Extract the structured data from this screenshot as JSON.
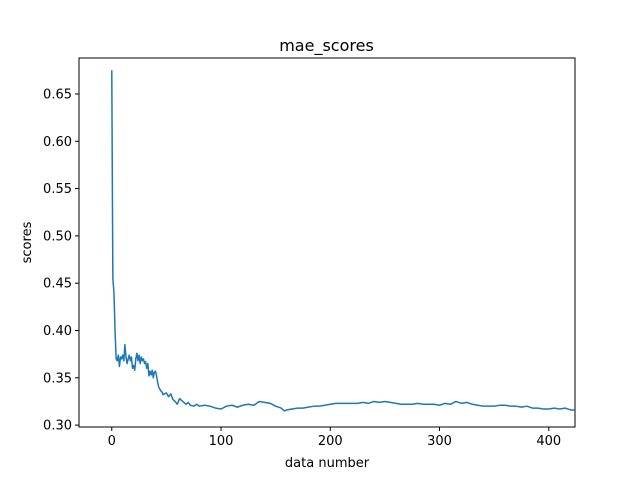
{
  "chart_data": {
    "type": "line",
    "title": "mae_scores",
    "xlabel": "data number",
    "ylabel": "scores",
    "xlim": [
      -30,
      424
    ],
    "ylim": [
      0.298,
      0.688
    ],
    "xticks": [
      0,
      100,
      200,
      300,
      400
    ],
    "yticks": [
      0.3,
      0.35,
      0.4,
      0.45,
      0.5,
      0.55,
      0.6,
      0.65
    ],
    "ytick_labels": [
      "0.30",
      "0.35",
      "0.40",
      "0.45",
      "0.50",
      "0.55",
      "0.60",
      "0.65"
    ],
    "grid": false,
    "color": "#1f77b4",
    "series": [
      {
        "x": [
          0,
          0.5,
          1,
          2,
          3,
          4,
          5,
          6,
          7,
          8,
          9,
          10,
          11,
          12,
          13,
          14,
          15,
          16,
          17,
          18,
          19,
          20,
          21,
          22,
          23,
          24,
          25,
          26,
          27,
          28,
          29,
          30,
          31,
          32,
          33,
          34,
          35,
          36,
          37,
          38,
          39,
          40,
          41,
          42,
          43,
          44,
          45,
          46,
          47,
          48,
          50,
          52,
          54,
          56,
          58,
          60,
          62,
          65,
          68,
          70,
          72,
          75,
          78,
          80,
          85,
          90,
          95,
          100,
          105,
          110,
          115,
          120,
          125,
          130,
          135,
          140,
          145,
          150,
          155,
          158,
          160,
          165,
          170,
          175,
          180,
          185,
          190,
          195,
          200,
          205,
          210,
          215,
          220,
          225,
          230,
          235,
          240,
          245,
          250,
          255,
          260,
          265,
          270,
          275,
          280,
          285,
          290,
          295,
          300,
          305,
          310,
          315,
          320,
          325,
          330,
          335,
          340,
          345,
          350,
          355,
          360,
          365,
          370,
          375,
          380,
          385,
          390,
          395,
          400,
          405,
          410,
          415,
          420,
          424
        ],
        "values": [
          0.675,
          0.56,
          0.455,
          0.44,
          0.4,
          0.37,
          0.368,
          0.374,
          0.362,
          0.372,
          0.37,
          0.374,
          0.368,
          0.385,
          0.372,
          0.365,
          0.37,
          0.374,
          0.368,
          0.372,
          0.36,
          0.363,
          0.358,
          0.37,
          0.376,
          0.368,
          0.374,
          0.365,
          0.372,
          0.368,
          0.37,
          0.365,
          0.367,
          0.36,
          0.365,
          0.352,
          0.357,
          0.353,
          0.358,
          0.35,
          0.356,
          0.357,
          0.352,
          0.345,
          0.34,
          0.338,
          0.336,
          0.335,
          0.332,
          0.333,
          0.334,
          0.33,
          0.333,
          0.327,
          0.325,
          0.322,
          0.328,
          0.325,
          0.322,
          0.324,
          0.321,
          0.32,
          0.322,
          0.32,
          0.321,
          0.32,
          0.318,
          0.317,
          0.32,
          0.321,
          0.319,
          0.321,
          0.322,
          0.321,
          0.325,
          0.324,
          0.323,
          0.32,
          0.318,
          0.315,
          0.316,
          0.317,
          0.318,
          0.318,
          0.319,
          0.32,
          0.32,
          0.321,
          0.322,
          0.323,
          0.323,
          0.323,
          0.323,
          0.323,
          0.324,
          0.323,
          0.325,
          0.324,
          0.325,
          0.324,
          0.323,
          0.322,
          0.322,
          0.322,
          0.323,
          0.322,
          0.322,
          0.322,
          0.321,
          0.323,
          0.322,
          0.325,
          0.323,
          0.324,
          0.322,
          0.321,
          0.32,
          0.32,
          0.32,
          0.321,
          0.321,
          0.32,
          0.32,
          0.319,
          0.32,
          0.318,
          0.318,
          0.317,
          0.317,
          0.318,
          0.317,
          0.318,
          0.316,
          0.316
        ]
      }
    ]
  }
}
